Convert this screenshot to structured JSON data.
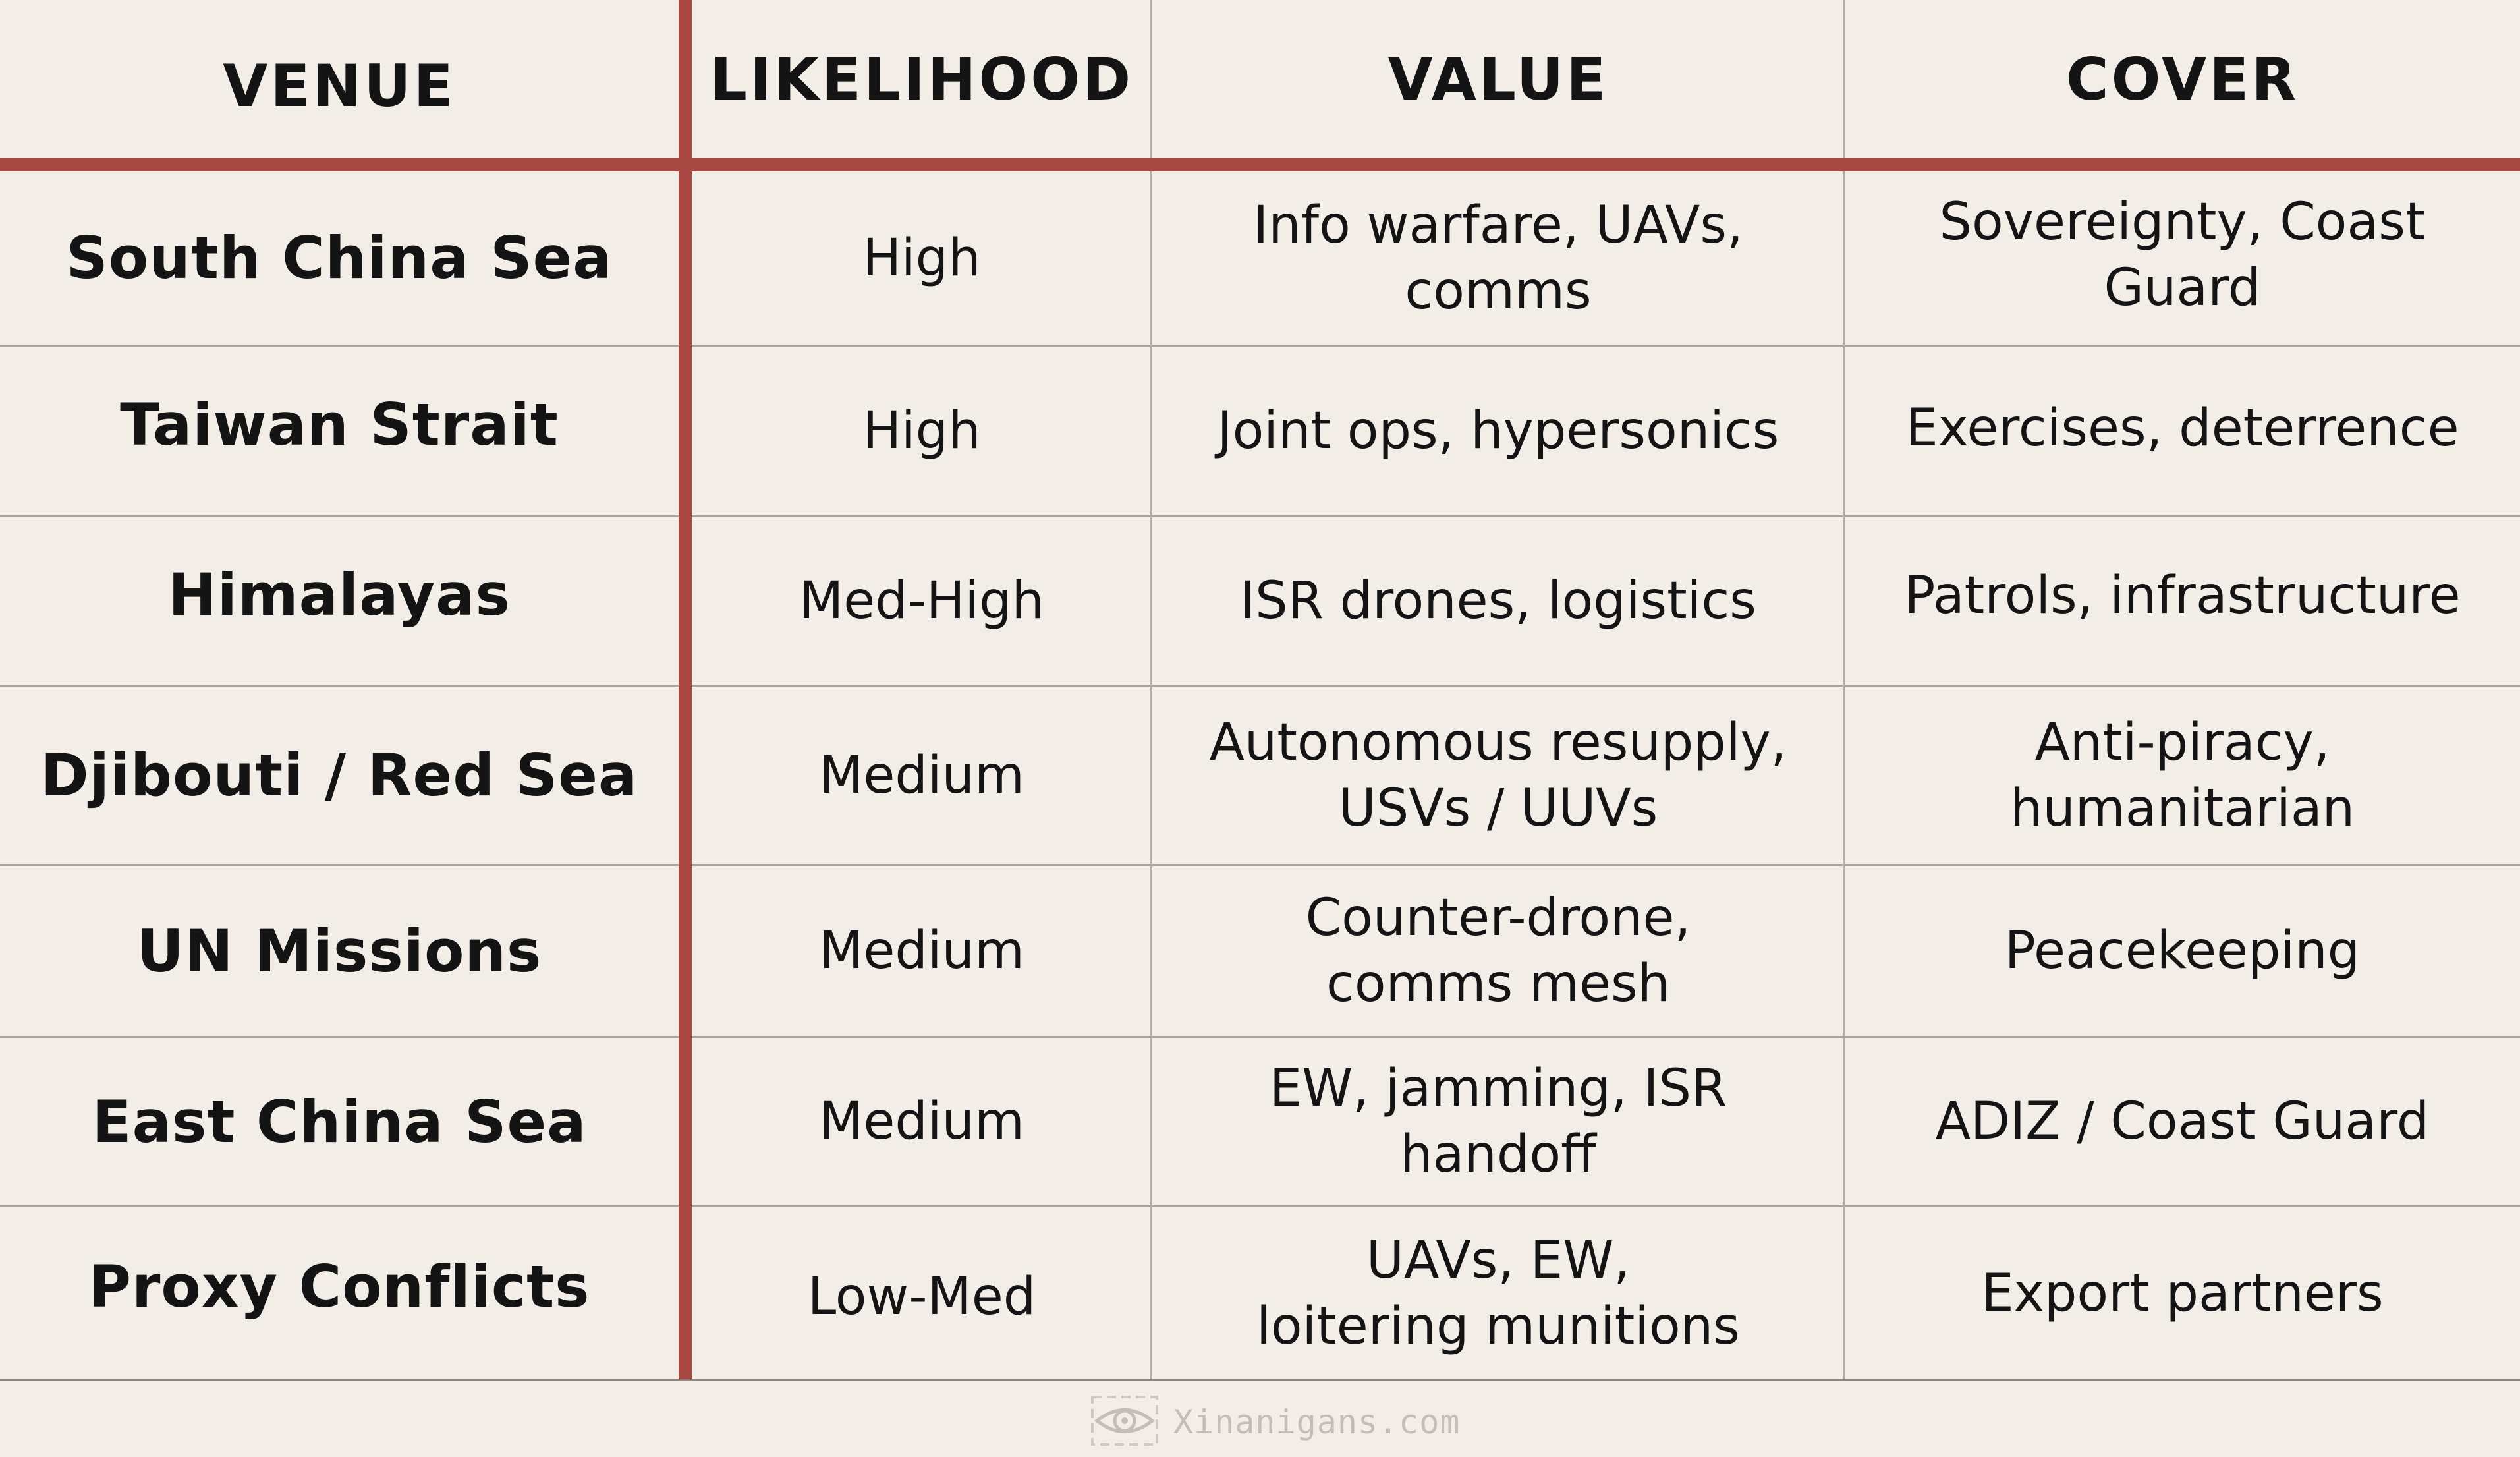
{
  "table": {
    "headers": [
      "VENUE",
      "LIKELIHOOD",
      "VALUE",
      "COVER"
    ],
    "rows": [
      {
        "venue": "South China Sea",
        "likelihood": "High",
        "value": "Info warfare, UAVs, comms",
        "cover": "Sovereignty, Coast Guard"
      },
      {
        "venue": "Taiwan Strait",
        "likelihood": "High",
        "value": "Joint ops, hypersonics",
        "cover": "Exercises, deterrence"
      },
      {
        "venue": "Himalayas",
        "likelihood": "Med-High",
        "value": "ISR drones, logistics",
        "cover": "Patrols, infrastructure"
      },
      {
        "venue": "Djibouti / Red Sea",
        "likelihood": "Medium",
        "value": "Autonomous resupply,\nUSVs / UUVs",
        "cover": "Anti-piracy, humanitarian"
      },
      {
        "venue": "UN Missions",
        "likelihood": "Medium",
        "value": "Counter-drone,\ncomms mesh",
        "cover": "Peacekeeping"
      },
      {
        "venue": "East China Sea",
        "likelihood": "Medium",
        "value": "EW, jamming, ISR handoff",
        "cover": "ADIZ / Coast Guard"
      },
      {
        "venue": "Proxy Conflicts",
        "likelihood": "Low-Med",
        "value": "UAVs, EW,\nloitering munitions",
        "cover": "Export partners"
      }
    ]
  },
  "watermark": {
    "text": "Xinanigans.com",
    "icon": "eye-logo-icon"
  },
  "colors": {
    "background": "#f2ede6",
    "accent": "#a84843",
    "text": "#141414"
  }
}
